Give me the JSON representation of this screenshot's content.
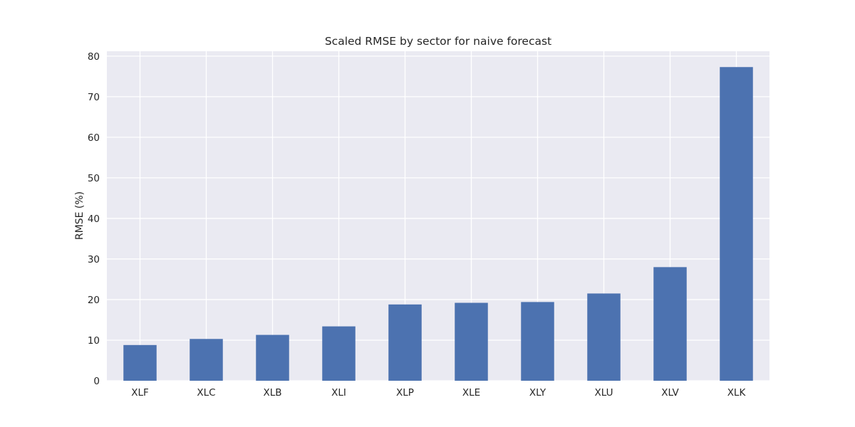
{
  "chart_data": {
    "type": "bar",
    "title": "Scaled RMSE by sector for naive forecast",
    "xlabel": "",
    "ylabel": "RMSE (%)",
    "categories": [
      "XLF",
      "XLC",
      "XLB",
      "XLI",
      "XLP",
      "XLE",
      "XLY",
      "XLU",
      "XLV",
      "XLK"
    ],
    "values": [
      8.8,
      10.3,
      11.3,
      13.4,
      18.8,
      19.2,
      19.4,
      21.5,
      28.0,
      77.3
    ],
    "ylim": [
      0,
      81.2
    ],
    "yticks": [
      0,
      10,
      20,
      30,
      40,
      50,
      60,
      70,
      80
    ],
    "grid": true,
    "colors": {
      "bar": "#4c72b0",
      "plot_background": "#eaeaf2",
      "grid": "#ffffff"
    }
  }
}
